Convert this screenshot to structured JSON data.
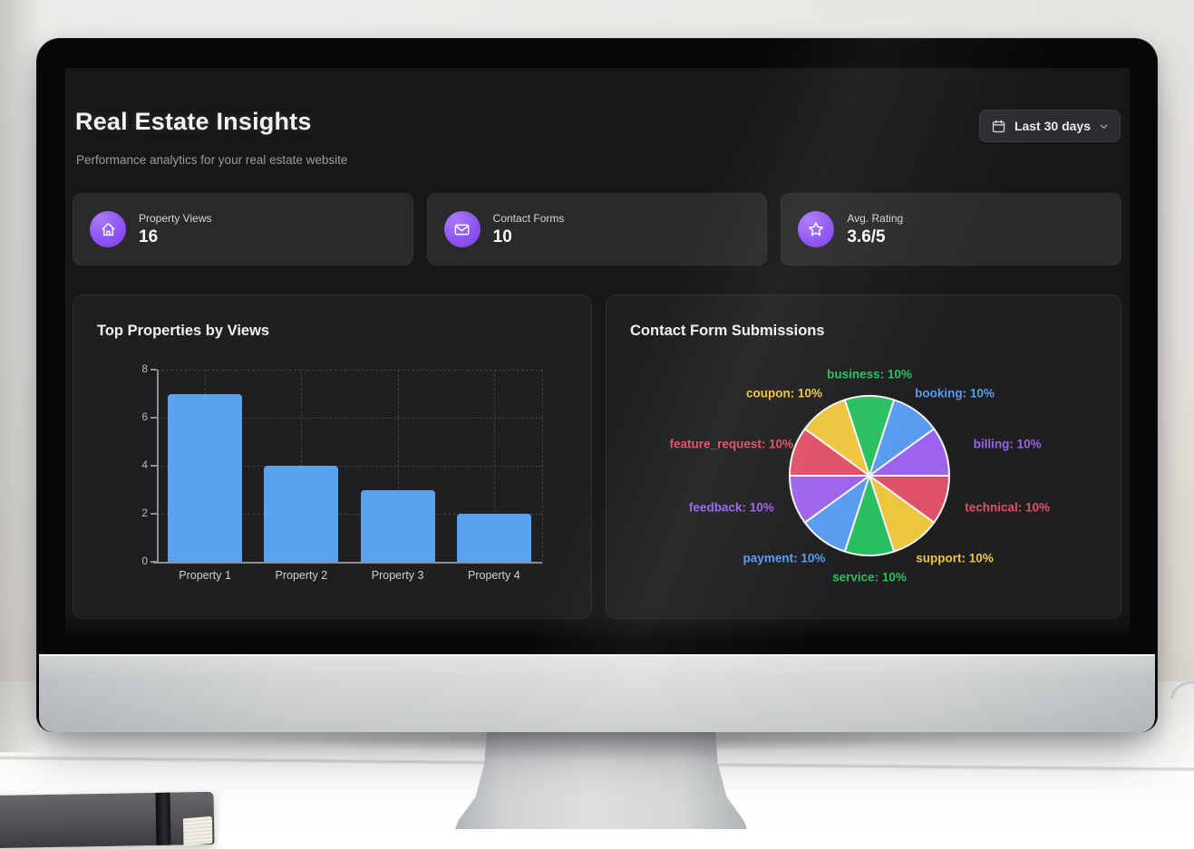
{
  "theme": {
    "accent_purple": "#8b50f2",
    "screen_bg": "#17171a",
    "panel_bg": "#1f1f22",
    "card_bg": "#2a2a2d",
    "bar_blue": "#58a2ef"
  },
  "header": {
    "title": "Real Estate Insights",
    "subtitle": "Performance analytics for your real estate website",
    "range_selector": {
      "icon": "calendar-icon",
      "label": "Last 30 days",
      "chevron_icon": "chevron-down-icon"
    }
  },
  "stats": [
    {
      "icon": "home-icon",
      "label": "Property Views",
      "value": "16"
    },
    {
      "icon": "mail-icon",
      "label": "Contact Forms",
      "value": "10"
    },
    {
      "icon": "star-icon",
      "label": "Avg. Rating",
      "value": "3.6/5"
    }
  ],
  "chart_data": [
    {
      "type": "bar",
      "title": "Top Properties by Views",
      "categories": [
        "Property 1",
        "Property 2",
        "Property 3",
        "Property 4"
      ],
      "values": [
        7,
        4,
        3,
        2
      ],
      "xlabel": "",
      "ylabel": "",
      "ylim": [
        0,
        8
      ],
      "yticks": [
        0,
        2,
        4,
        6,
        8
      ],
      "grid": true,
      "bar_color": "#58a2ef",
      "axis_color": "#8e8e94",
      "grid_color": "#3e3e44"
    },
    {
      "type": "pie",
      "title": "Contact Form Submissions",
      "label_format": "{label}: {pct}%",
      "start_angle_deg": -18,
      "direction": "clockwise",
      "legend": "callout-labels",
      "slices": [
        {
          "label": "business",
          "pct": 10,
          "color": "#29bf5f"
        },
        {
          "label": "booking",
          "pct": 10,
          "color": "#5a9bf0"
        },
        {
          "label": "billing",
          "pct": 10,
          "color": "#9c64ec"
        },
        {
          "label": "technical",
          "pct": 10,
          "color": "#df5168"
        },
        {
          "label": "support",
          "pct": 10,
          "color": "#eec53f"
        },
        {
          "label": "service",
          "pct": 10,
          "color": "#29bf5f"
        },
        {
          "label": "payment",
          "pct": 10,
          "color": "#5a9bf0"
        },
        {
          "label": "feedback",
          "pct": 10,
          "color": "#9c64ec"
        },
        {
          "label": "feature_request",
          "pct": 10,
          "color": "#df5168"
        },
        {
          "label": "coupon",
          "pct": 10,
          "color": "#eec53f"
        }
      ]
    }
  ]
}
